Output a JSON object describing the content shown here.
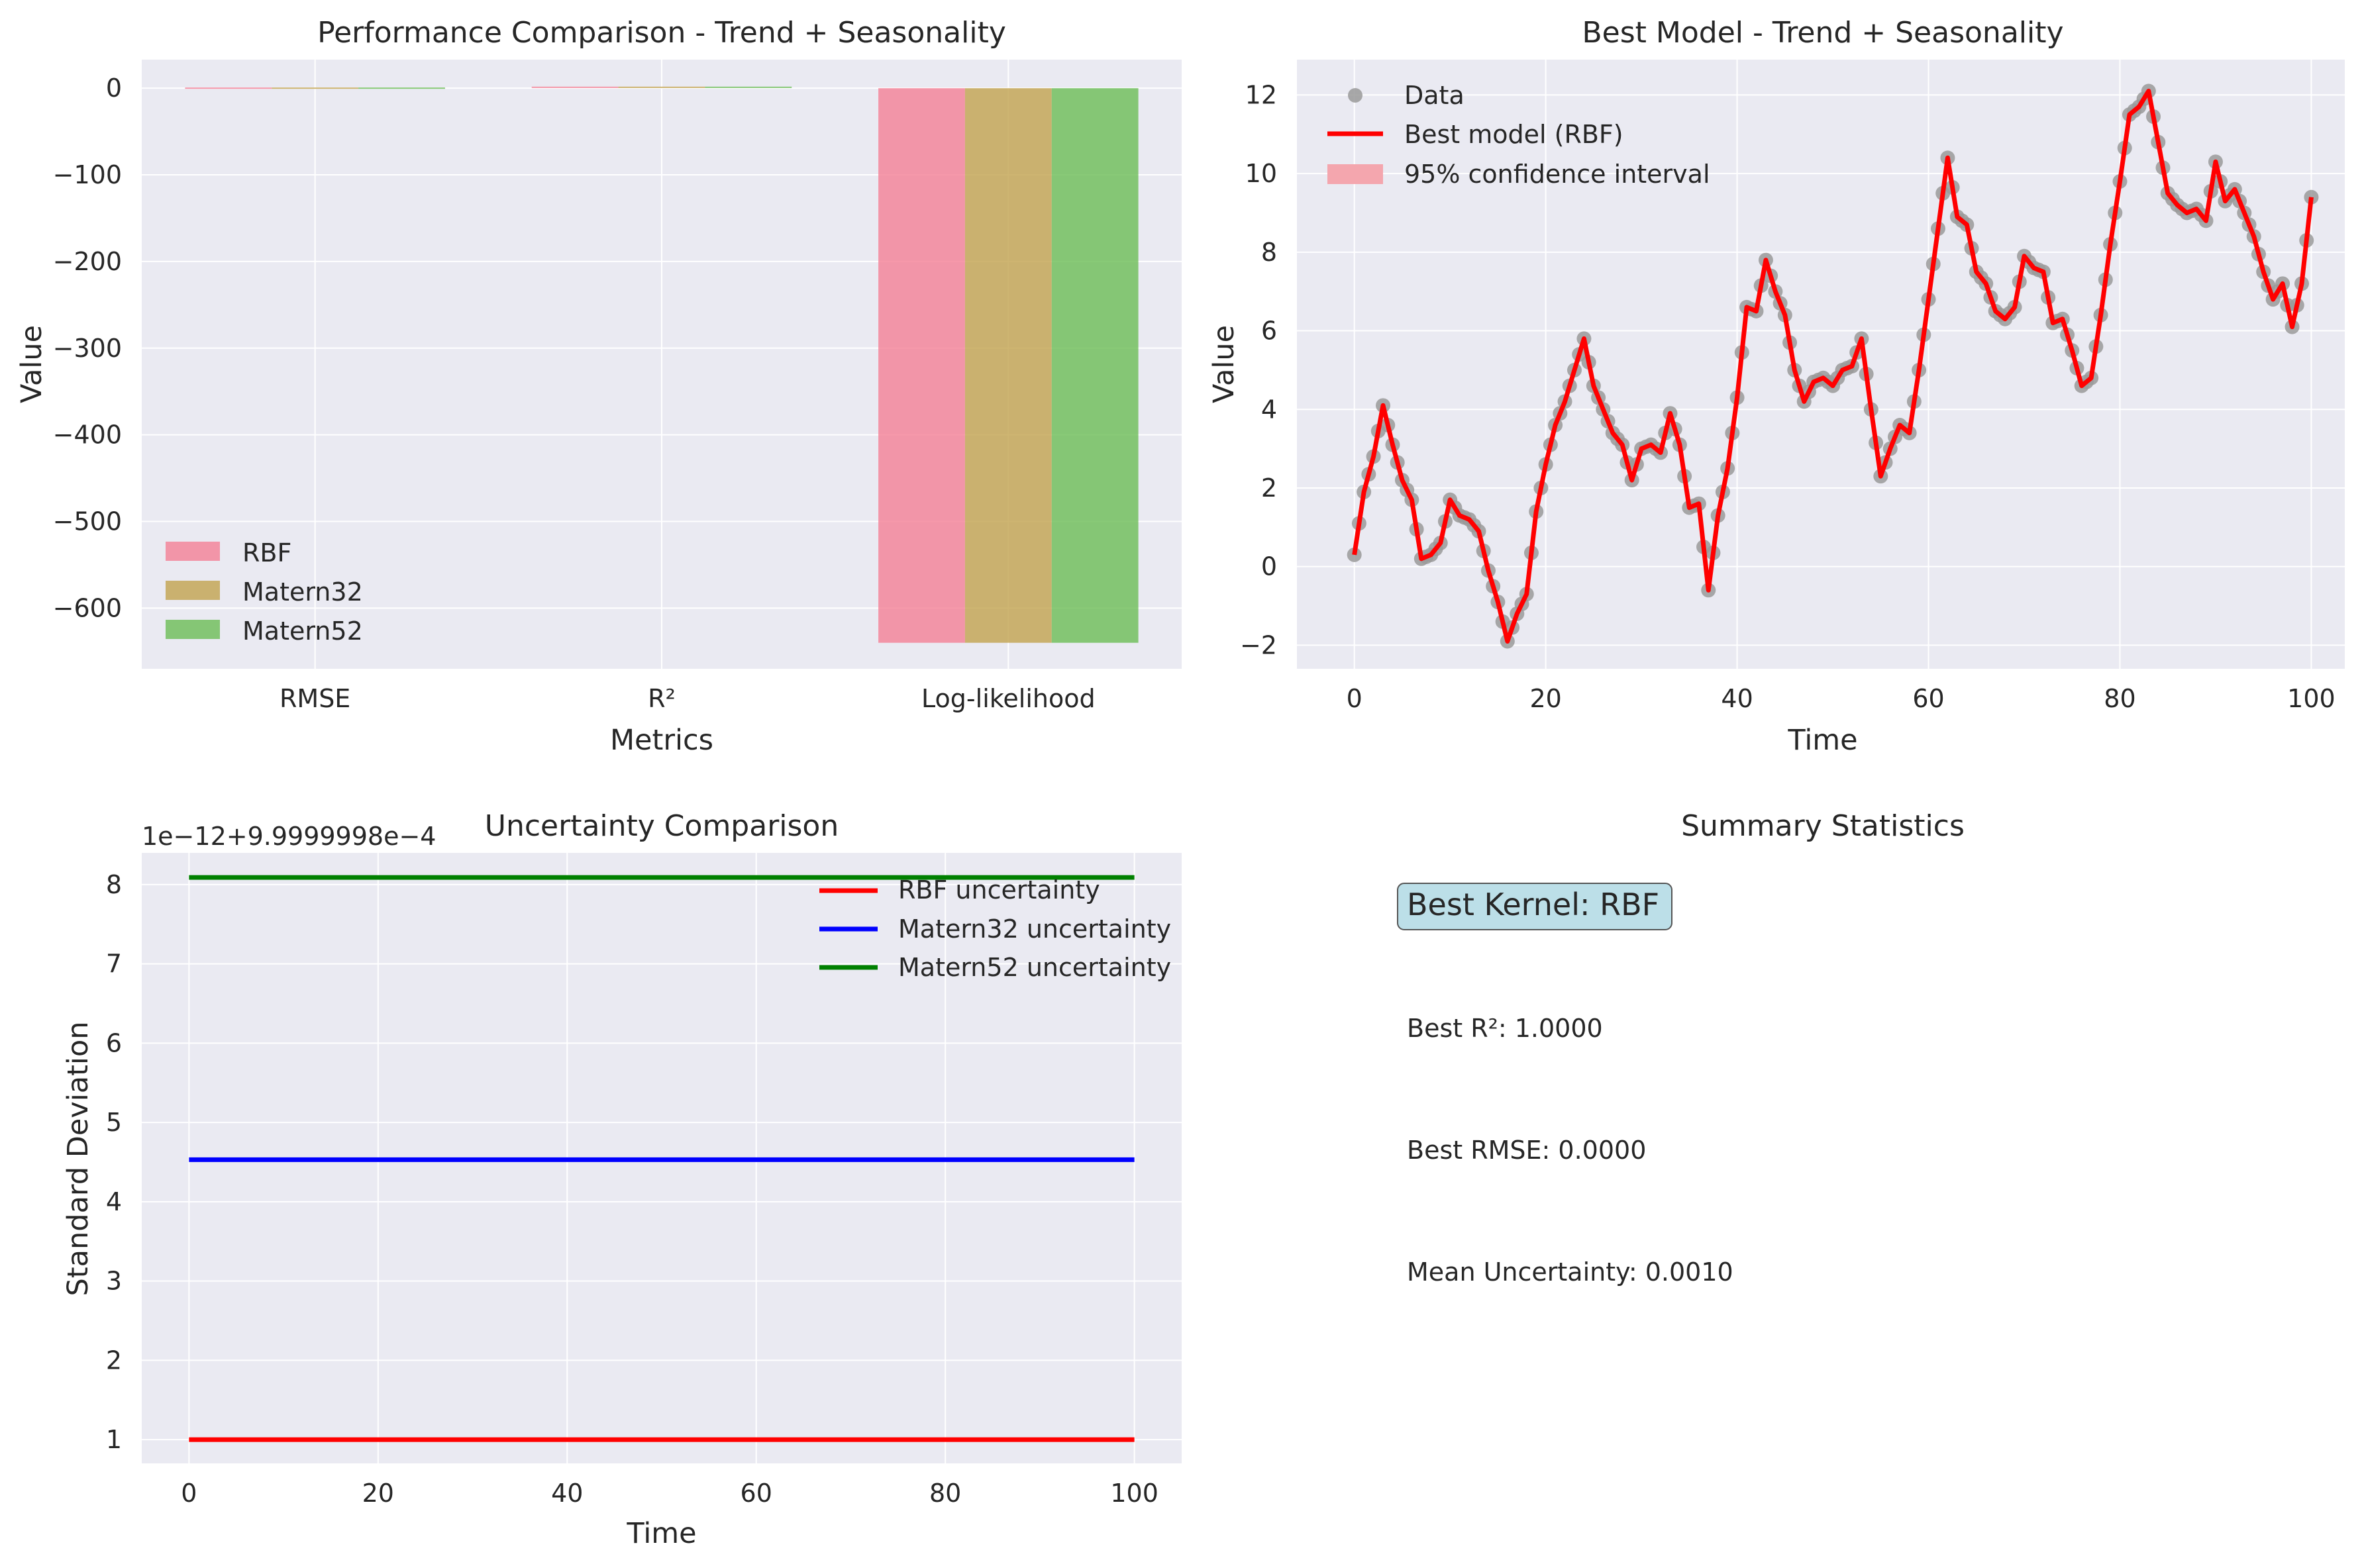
{
  "chart_data": [
    {
      "id": "performance",
      "type": "bar",
      "title": "Performance Comparison - Trend + Seasonality",
      "xlabel": "Metrics",
      "ylabel": "Value",
      "categories": [
        "RMSE",
        "R²",
        "Log-likelihood"
      ],
      "ylim": [
        -670,
        33
      ],
      "yticks": [
        0,
        -100,
        -200,
        -300,
        -400,
        -500,
        -600
      ],
      "ytick_labels": [
        "0",
        "−100",
        "−200",
        "−300",
        "−400",
        "−500",
        "−600"
      ],
      "grid": true,
      "legend_position": "lower-left",
      "series": [
        {
          "name": "RBF",
          "color": "#f47f95",
          "values": [
            0.0,
            1.0,
            -640
          ]
        },
        {
          "name": "Matern32",
          "color": "#c2a24e",
          "values": [
            0.0,
            1.0,
            -640
          ]
        },
        {
          "name": "Matern52",
          "color": "#6bbd55",
          "values": [
            0.0,
            1.0,
            -640
          ]
        }
      ]
    },
    {
      "id": "best_model",
      "type": "line",
      "title": "Best Model - Trend + Seasonality",
      "xlabel": "Time",
      "ylabel": "Value",
      "xlim": [
        -6,
        103.5
      ],
      "ylim": [
        -2.6,
        12.9
      ],
      "xticks": [
        0,
        20,
        40,
        60,
        80,
        100
      ],
      "xtick_labels": [
        "0",
        "20",
        "40",
        "60",
        "80",
        "100"
      ],
      "yticks": [
        -2,
        0,
        2,
        4,
        6,
        8,
        10,
        12
      ],
      "ytick_labels": [
        "−2",
        "0",
        "2",
        "4",
        "6",
        "8",
        "10",
        "12"
      ],
      "grid": true,
      "legend_position": "top-left",
      "legend": {
        "data": "Data",
        "model": "Best model (RBF)",
        "ci": "95% confidence interval"
      },
      "colors": {
        "data": "#9a9a9a",
        "model": "#ff0000",
        "ci": "#f4a6ae"
      },
      "x": [
        0,
        1,
        2,
        3,
        4,
        5,
        6,
        7,
        8,
        9,
        10,
        11,
        12,
        13,
        14,
        15,
        16,
        17,
        18,
        19,
        20,
        21,
        22,
        23,
        24,
        25,
        26,
        27,
        28,
        29,
        30,
        31,
        32,
        33,
        34,
        35,
        36,
        37,
        38,
        39,
        40,
        41,
        42,
        43,
        44,
        45,
        46,
        47,
        48,
        49,
        50,
        51,
        52,
        53,
        54,
        55,
        56,
        57,
        58,
        59,
        60,
        61,
        62,
        63,
        64,
        65,
        66,
        67,
        68,
        69,
        70,
        71,
        72,
        73,
        74,
        75,
        76,
        77,
        78,
        79,
        80,
        81,
        82,
        83,
        84,
        85,
        86,
        87,
        88,
        89,
        90,
        91,
        92,
        93,
        94,
        95,
        96,
        97,
        98,
        99,
        100
      ],
      "y": [
        0.3,
        1.9,
        2.8,
        4.1,
        3.1,
        2.2,
        1.7,
        0.2,
        0.3,
        0.6,
        1.7,
        1.3,
        1.2,
        0.9,
        -0.1,
        -0.9,
        -1.9,
        -1.2,
        -0.7,
        1.4,
        2.6,
        3.6,
        4.2,
        5.0,
        5.8,
        4.6,
        4.0,
        3.4,
        3.1,
        2.2,
        3.0,
        3.1,
        2.9,
        3.9,
        3.1,
        1.5,
        1.6,
        -0.6,
        1.3,
        2.5,
        4.3,
        6.6,
        6.5,
        7.8,
        7.0,
        6.4,
        5.0,
        4.2,
        4.7,
        4.8,
        4.6,
        5.0,
        5.1,
        5.8,
        4.0,
        2.3,
        3.0,
        3.6,
        3.4,
        5.0,
        6.8,
        8.6,
        10.4,
        8.9,
        8.7,
        7.5,
        7.2,
        6.5,
        6.3,
        6.6,
        7.9,
        7.6,
        7.5,
        6.2,
        6.3,
        5.5,
        4.6,
        4.8,
        6.4,
        8.2,
        9.8,
        11.5,
        11.7,
        12.1,
        10.8,
        9.5,
        9.2,
        9.0,
        9.1,
        8.8,
        10.3,
        9.3,
        9.6,
        9.0,
        8.4,
        7.5,
        6.8,
        7.2,
        6.1,
        7.2,
        9.4
      ],
      "ci_halfwidth": 0.002
    },
    {
      "id": "uncertainty",
      "type": "line",
      "title": "Uncertainty Comparison",
      "xlabel": "Time",
      "ylabel": "Standard Deviation",
      "offset_label": "1e−12+9.9999998e−4",
      "xlim": [
        -5,
        105
      ],
      "ylim": [
        0.7,
        8.4
      ],
      "xticks": [
        0,
        20,
        40,
        60,
        80,
        100
      ],
      "xtick_labels": [
        "0",
        "20",
        "40",
        "60",
        "80",
        "100"
      ],
      "yticks": [
        1,
        2,
        3,
        4,
        5,
        6,
        7,
        8
      ],
      "ytick_labels": [
        "1",
        "2",
        "3",
        "4",
        "5",
        "6",
        "7",
        "8"
      ],
      "grid": true,
      "legend_position": "upper-right",
      "series": [
        {
          "name": "RBF uncertainty",
          "color": "#ff0000",
          "x": [
            0,
            100
          ],
          "y": [
            1.0,
            1.0
          ]
        },
        {
          "name": "Matern32 uncertainty",
          "color": "#0000ff",
          "x": [
            0,
            100
          ],
          "y": [
            4.53,
            4.53
          ]
        },
        {
          "name": "Matern52 uncertainty",
          "color": "#008000",
          "x": [
            0,
            100
          ],
          "y": [
            8.09,
            8.09
          ]
        }
      ]
    }
  ],
  "summary": {
    "title": "Summary Statistics",
    "best_kernel": "Best Kernel: RBF",
    "best_r2": "Best R²: 1.0000",
    "best_rmse": "Best RMSE: 0.0000",
    "mean_uncertainty": "Mean Uncertainty: 0.0010"
  },
  "colors": {
    "axes_bg": "#eaeaf2",
    "grid": "#ffffff",
    "text": "#262626",
    "badge_bg": "#bcdfe8",
    "badge_border": "#555555"
  }
}
